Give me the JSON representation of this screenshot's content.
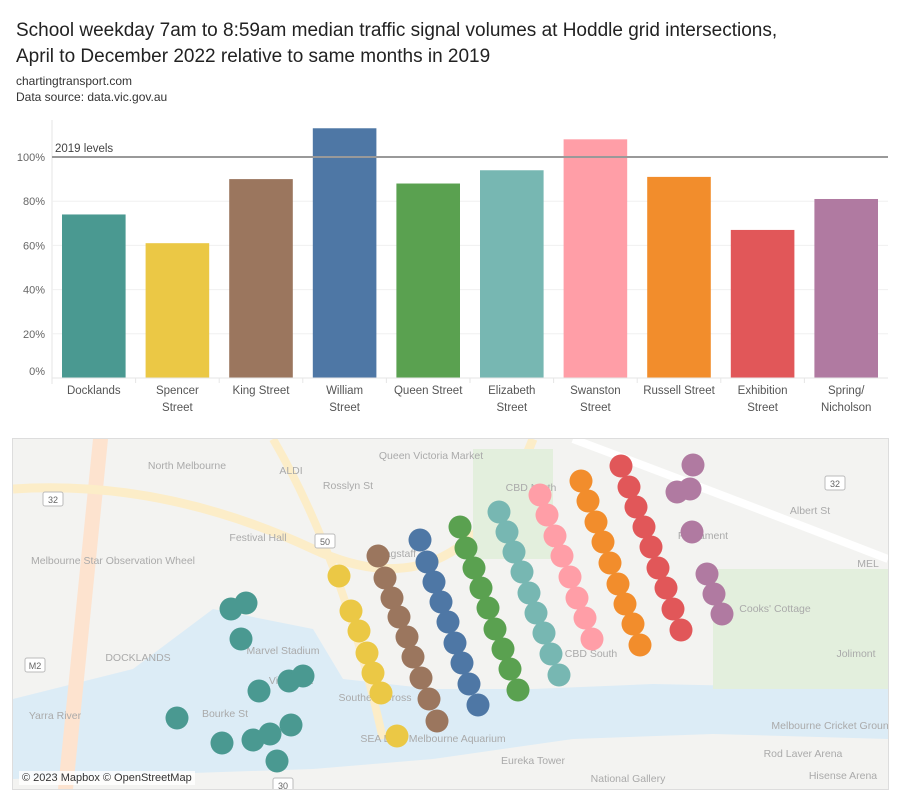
{
  "title_line1": "School weekday 7am to 8:59am median traffic signal volumes at Hoddle grid intersections,",
  "title_line2": "April to December 2022 relative to same months in 2019",
  "source_site": "chartingtransport.com",
  "data_source": "Data source: data.vic.gov.au",
  "chart_data": {
    "type": "bar",
    "categories": [
      "Docklands",
      "Spencer Street",
      "King Street",
      "William Street",
      "Queen Street",
      "Elizabeth Street",
      "Swanston Street",
      "Russell Street",
      "Exhibition Street",
      "Spring/ Nicholson"
    ],
    "category_label_lines": [
      [
        "Docklands"
      ],
      [
        "Spencer",
        "Street"
      ],
      [
        "King Street"
      ],
      [
        "William",
        "Street"
      ],
      [
        "Queen Street"
      ],
      [
        "Elizabeth",
        "Street"
      ],
      [
        "Swanston",
        "Street"
      ],
      [
        "Russell Street"
      ],
      [
        "Exhibition",
        "Street"
      ],
      [
        "Spring/",
        "Nicholson"
      ]
    ],
    "values": [
      74,
      61,
      90,
      113,
      88,
      94,
      108,
      91,
      67,
      81
    ],
    "unit": "%",
    "colors": [
      "#4a9991",
      "#ebc845",
      "#9b765e",
      "#4e77a5",
      "#5aa150",
      "#77b7b2",
      "#ff9ea7",
      "#f28d2c",
      "#e15759",
      "#b07aa1"
    ],
    "yticks": [
      0,
      20,
      40,
      60,
      80,
      100
    ],
    "ylim": [
      0,
      118
    ],
    "reference_line": {
      "value": 100,
      "label": "2019 levels"
    },
    "grid": true
  },
  "map": {
    "labels": [
      "North Melbourne",
      "ALDI",
      "Rosslyn St",
      "Queen Victoria Market",
      "Festival Hall",
      "Melbourne Star Observation Wheel",
      "DOCKLANDS",
      "Marvel Stadium",
      "Bourke St",
      "Village St",
      "Southern Cross",
      "Yarra River",
      "SEA LIFE Melbourne Aquarium",
      "Eureka Tower",
      "National Gallery",
      "CBD South",
      "CBD North",
      "Parliament",
      "Albert St",
      "Cooks' Cottage",
      "Jolimont",
      "Melbourne Cricket Ground",
      "Rod Laver Arena",
      "Hisense Arena",
      "Flagstaff",
      "MEL"
    ],
    "road_shields": [
      "32",
      "50",
      "M2",
      "32",
      "30"
    ],
    "credit": "© 2023 Mapbox © OpenStreetMap"
  }
}
